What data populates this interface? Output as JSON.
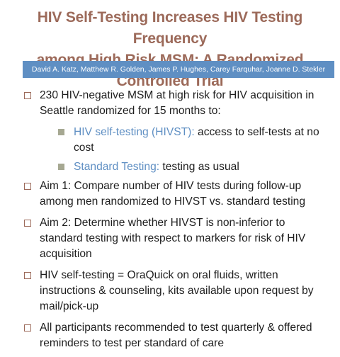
{
  "title": {
    "line1": "HIV Self-Testing Increases HIV Testing Frequency",
    "line2": "among High Risk MSM: A Randomized Controlled Trial"
  },
  "authors": "David A. Katz, Matthew R. Golden, James P. Hughes, Carey Farquhar, Joanne D. Stekler",
  "bullets": [
    {
      "text": "230 HIV-negative MSM at high risk for HIV acquisition in Seattle randomized for 15 months to:",
      "subs": [
        {
          "label": "HIV self-testing (HIVST):",
          "text": " access to self-tests at no cost"
        },
        {
          "label": "Standard Testing:",
          "text": " testing as usual"
        }
      ]
    },
    {
      "text": "Aim 1: Compare number of HIV tests during follow-up among men randomized to HIVST vs. standard testing"
    },
    {
      "text": "Aim 2: Determine whether HIVST is non-inferior to standard testing with respect to markers for risk of HIV acquisition"
    },
    {
      "text": "HIV self-testing = OraQuick on oral fluids, written instructions & counseling, kits available upon request by mail/pick-up"
    },
    {
      "text": "All participants recommended to test quarterly & offered reminders to test per standard of care"
    }
  ]
}
